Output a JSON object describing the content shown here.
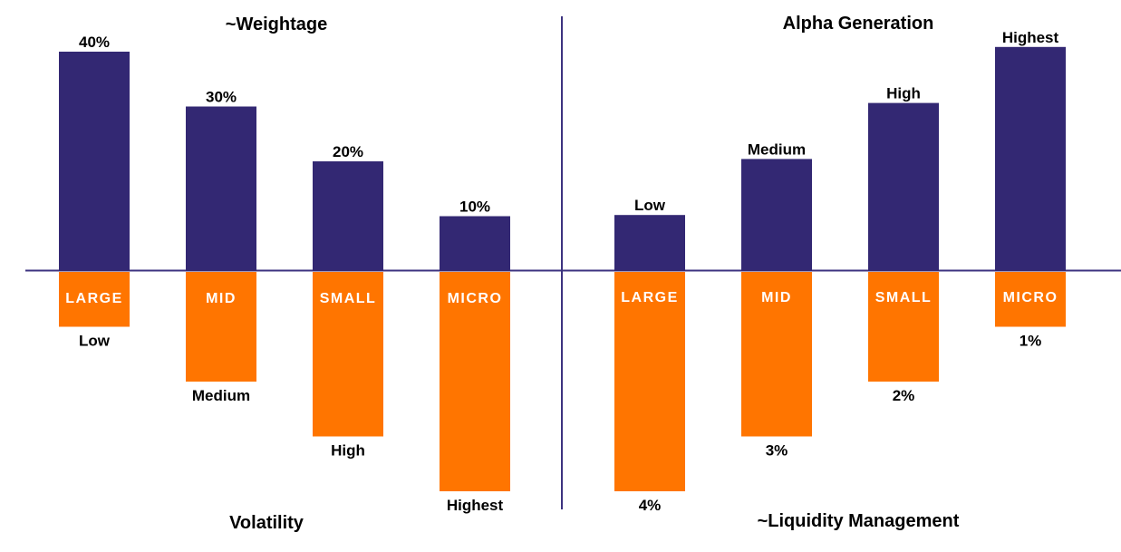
{
  "colors": {
    "positive_bar": "#332873",
    "negative_bar": "#FF7500",
    "axis_line": "#3D3380",
    "category_text": "#FFFFFF",
    "label_text": "#000000"
  },
  "chart_data": [
    {
      "type": "bar",
      "panel": "left",
      "categories": [
        "LARGE",
        "MID",
        "SMALL",
        "MICRO"
      ],
      "series": [
        {
          "name": "~Weightage",
          "direction": "up",
          "values": [
            40,
            30,
            20,
            10
          ],
          "labels": [
            "40%",
            "30%",
            "20%",
            "10%"
          ]
        },
        {
          "name": "Volatility",
          "direction": "down",
          "values": [
            1,
            2,
            3,
            4
          ],
          "labels": [
            "Low",
            "Medium",
            "High",
            "Highest"
          ]
        }
      ],
      "top_title": "~Weightage",
      "bottom_title": "Volatility"
    },
    {
      "type": "bar",
      "panel": "right",
      "categories": [
        "LARGE",
        "MID",
        "SMALL",
        "MICRO"
      ],
      "series": [
        {
          "name": "Alpha Generation",
          "direction": "up",
          "values": [
            1,
            2,
            3,
            4
          ],
          "labels": [
            "Low",
            "Medium",
            "High",
            "Highest"
          ]
        },
        {
          "name": "~Liquidity Management",
          "direction": "down",
          "values": [
            4,
            3,
            2,
            1
          ],
          "labels": [
            "4%",
            "3%",
            "2%",
            "1%"
          ]
        }
      ],
      "top_title": "Alpha Generation",
      "bottom_title": "~Liquidity Management"
    }
  ]
}
